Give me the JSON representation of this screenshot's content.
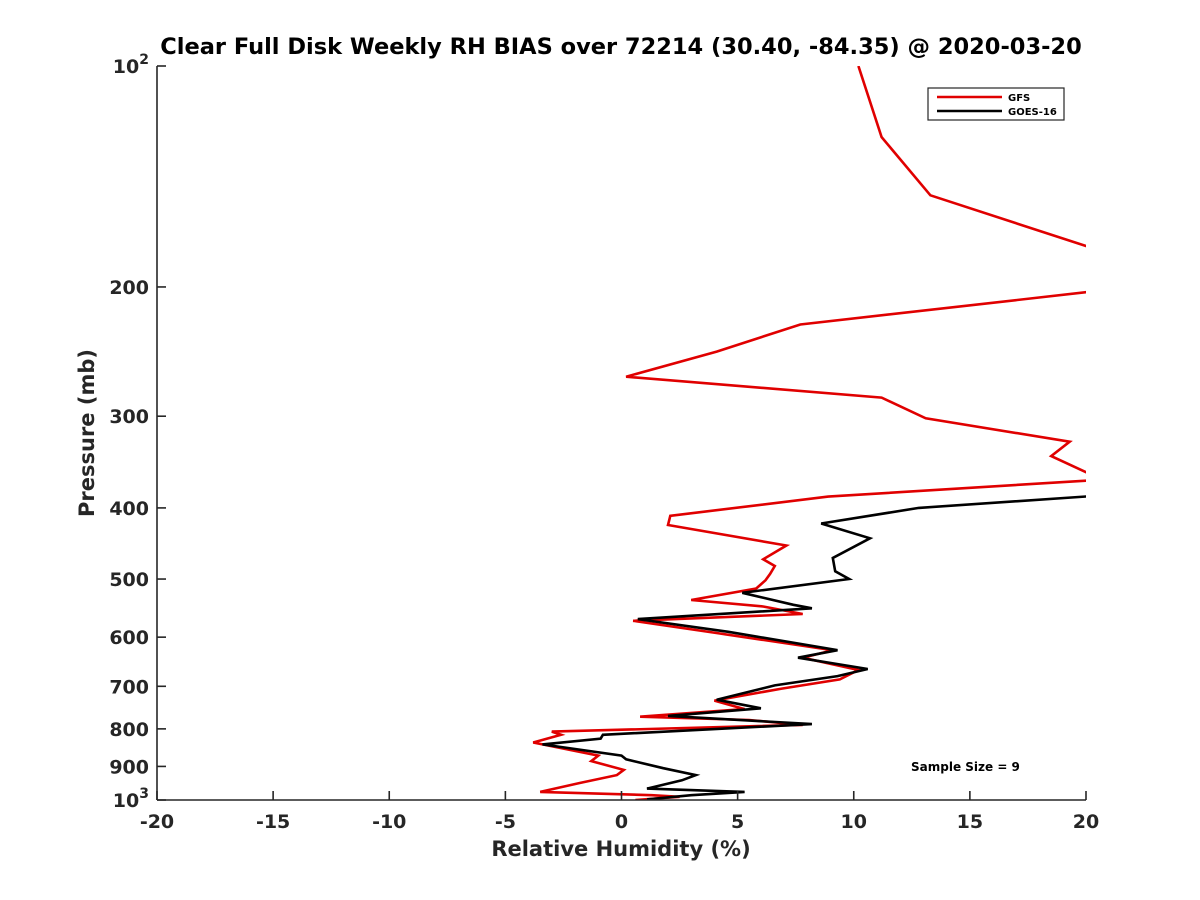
{
  "chart_data": {
    "type": "line",
    "title": "Clear Full Disk Weekly RH BIAS over 72214 (30.40, -84.35) @ 2020-03-20",
    "xlabel": "Relative Humidity (%)",
    "ylabel": "Pressure (mb)",
    "xlim": [
      -20,
      20
    ],
    "ylim": [
      100,
      1000
    ],
    "yscale": "log",
    "y_reversed": true,
    "grid": false,
    "legend_position": "top-right",
    "x_ticks": [
      "-20",
      "-15",
      "-10",
      "-5",
      "0",
      "5",
      "10",
      "15",
      "20"
    ],
    "y_ticks": [
      {
        "value": 100,
        "base": "10",
        "exp": "2"
      },
      {
        "value": 200,
        "label": "200"
      },
      {
        "value": 300,
        "label": "300"
      },
      {
        "value": 400,
        "label": "400"
      },
      {
        "value": 500,
        "label": "500"
      },
      {
        "value": 600,
        "label": "600"
      },
      {
        "value": 700,
        "label": "700"
      },
      {
        "value": 800,
        "label": "800"
      },
      {
        "value": 900,
        "label": "900"
      },
      {
        "value": 1000,
        "base": "10",
        "exp": "3"
      }
    ],
    "annotation": "Sample Size = 9",
    "series": [
      {
        "name": "GFS",
        "color": "#e00000",
        "points": [
          [
            10.2,
            100
          ],
          [
            11.2,
            125
          ],
          [
            13.3,
            150
          ],
          [
            20.5,
            178
          ],
          [
            20.2,
            203
          ],
          [
            7.7,
            225
          ],
          [
            4.1,
            245
          ],
          [
            0.2,
            265
          ],
          [
            11.2,
            283
          ],
          [
            13.1,
            302
          ],
          [
            19.3,
            325
          ],
          [
            18.5,
            340
          ],
          [
            20.2,
            360
          ],
          [
            20.1,
            367
          ],
          [
            8.9,
            386
          ],
          [
            2.1,
            410
          ],
          [
            2.0,
            422
          ],
          [
            7.1,
            450
          ],
          [
            6.1,
            470
          ],
          [
            6.6,
            480
          ],
          [
            6.4,
            492
          ],
          [
            6.2,
            502
          ],
          [
            5.8,
            515
          ],
          [
            3.0,
            534
          ],
          [
            6.1,
            545
          ],
          [
            7.8,
            558
          ],
          [
            0.5,
            570
          ],
          [
            4.2,
            593
          ],
          [
            9.1,
            625
          ],
          [
            7.8,
            640
          ],
          [
            10.2,
            665
          ],
          [
            9.4,
            685
          ],
          [
            6.9,
            705
          ],
          [
            4.0,
            732
          ],
          [
            5.3,
            752
          ],
          [
            0.8,
            770
          ],
          [
            5.5,
            778
          ],
          [
            7.8,
            790
          ],
          [
            -3.0,
            807
          ],
          [
            -2.6,
            815
          ],
          [
            -3.8,
            835
          ],
          [
            -1.0,
            870
          ],
          [
            -1.3,
            885
          ],
          [
            0.1,
            910
          ],
          [
            -0.2,
            925
          ],
          [
            -1.8,
            948
          ],
          [
            -3.5,
            975
          ],
          [
            1.3,
            985
          ],
          [
            2.5,
            990
          ],
          [
            0.6,
            1000
          ]
        ]
      },
      {
        "name": "GOES-16",
        "color": "#000000",
        "points": [
          [
            20.5,
            385
          ],
          [
            12.8,
            400
          ],
          [
            8.6,
            420
          ],
          [
            10.7,
            440
          ],
          [
            9.1,
            468
          ],
          [
            9.2,
            488
          ],
          [
            9.8,
            500
          ],
          [
            5.2,
            522
          ],
          [
            7.4,
            542
          ],
          [
            8.2,
            548
          ],
          [
            0.7,
            567
          ],
          [
            4.6,
            590
          ],
          [
            9.3,
            625
          ],
          [
            7.6,
            640
          ],
          [
            10.6,
            663
          ],
          [
            9.3,
            678
          ],
          [
            6.6,
            698
          ],
          [
            4.1,
            730
          ],
          [
            6.0,
            750
          ],
          [
            2.0,
            768
          ],
          [
            8.2,
            788
          ],
          [
            -0.8,
            815
          ],
          [
            -0.9,
            825
          ],
          [
            -3.4,
            840
          ],
          [
            0.0,
            870
          ],
          [
            0.2,
            880
          ],
          [
            1.8,
            905
          ],
          [
            3.2,
            925
          ],
          [
            2.6,
            940
          ],
          [
            1.1,
            965
          ],
          [
            5.3,
            975
          ],
          [
            3.0,
            985
          ],
          [
            1.1,
            998
          ]
        ]
      }
    ]
  }
}
